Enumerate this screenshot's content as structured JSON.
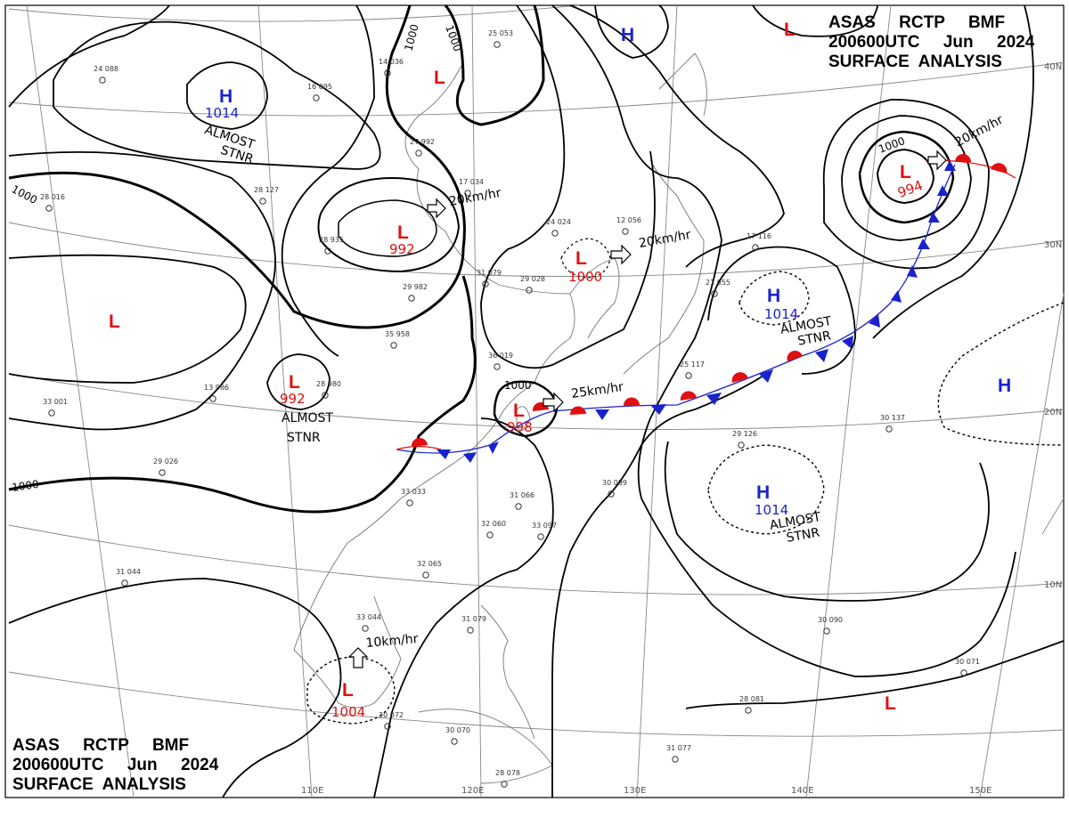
{
  "header": {
    "line1": "ASAS     RCTP     BMF",
    "line2": "200600UTC     Jun     2024",
    "line3": "SURFACE  ANALYSIS"
  },
  "footer": {
    "line1": "ASAS     RCTP     BMF",
    "line2": "200600UTC     Jun     2024",
    "line3": "SURFACE  ANALYSIS"
  },
  "colors": {
    "high": "#1a22cc",
    "low": "#e01010",
    "cold_front": "#1a22cc",
    "warm_front": "#e01010",
    "isobar": "#000000"
  },
  "pressure_systems": [
    {
      "id": "h-mongolia",
      "type": "H",
      "value": "1014"
    },
    {
      "id": "l-north",
      "type": "L",
      "value": ""
    },
    {
      "id": "h-north-top",
      "type": "H",
      "value": ""
    },
    {
      "id": "l-northeast-corner",
      "type": "L",
      "value": ""
    },
    {
      "id": "l-north-china",
      "type": "L",
      "value": "992"
    },
    {
      "id": "l-korea-sea",
      "type": "L",
      "value": "1000"
    },
    {
      "id": "l-west",
      "type": "L",
      "value": ""
    },
    {
      "id": "l-tibet",
      "type": "L",
      "value": "992"
    },
    {
      "id": "l-taiwan-strait",
      "type": "L",
      "value": "998"
    },
    {
      "id": "l-scs",
      "type": "L",
      "value": "1004"
    },
    {
      "id": "l-pacific-north",
      "type": "L",
      "value": "994"
    },
    {
      "id": "h-pacific-north",
      "type": "H",
      "value": "1014"
    },
    {
      "id": "h-pacific-mid",
      "type": "H",
      "value": "1014"
    },
    {
      "id": "h-pacific-east",
      "type": "H",
      "value": ""
    },
    {
      "id": "l-pacific-south",
      "type": "L",
      "value": ""
    }
  ],
  "annotations": {
    "almost_stnr": [
      "ALMOST",
      "STNR"
    ],
    "motion": [
      "20km/hr",
      "20km/hr",
      "25km/hr",
      "20km/hr",
      "10km/hr"
    ]
  },
  "isobar_labels": [
    "1000",
    "1000",
    "1000",
    "1000",
    "1000",
    "1000"
  ],
  "graticule": {
    "lon_labels": [
      "110E",
      "120E",
      "130E",
      "140E",
      "150E"
    ],
    "lat_labels": [
      "40N",
      "30N",
      "20N",
      "10N"
    ]
  },
  "stations": [
    "24 088",
    "16 095",
    "14 036",
    "25 053",
    "27 992",
    "17 034",
    "24 024",
    "12 056",
    "28 016",
    "28 127",
    "28 935",
    "29 982",
    "35 958",
    "31 079",
    "29 028",
    "36 019",
    "13 986",
    "28 980",
    "33 001",
    "29 026",
    "33 033",
    "31 066",
    "32 060",
    "32 065",
    "31 044",
    "33 044",
    "30 072",
    "30 070",
    "28 078",
    "31 077",
    "30 090",
    "29 126",
    "30 137",
    "28 081",
    "30 071",
    "33 097",
    "31 079",
    "30 099",
    "17 116",
    "21 055",
    "25 117"
  ]
}
